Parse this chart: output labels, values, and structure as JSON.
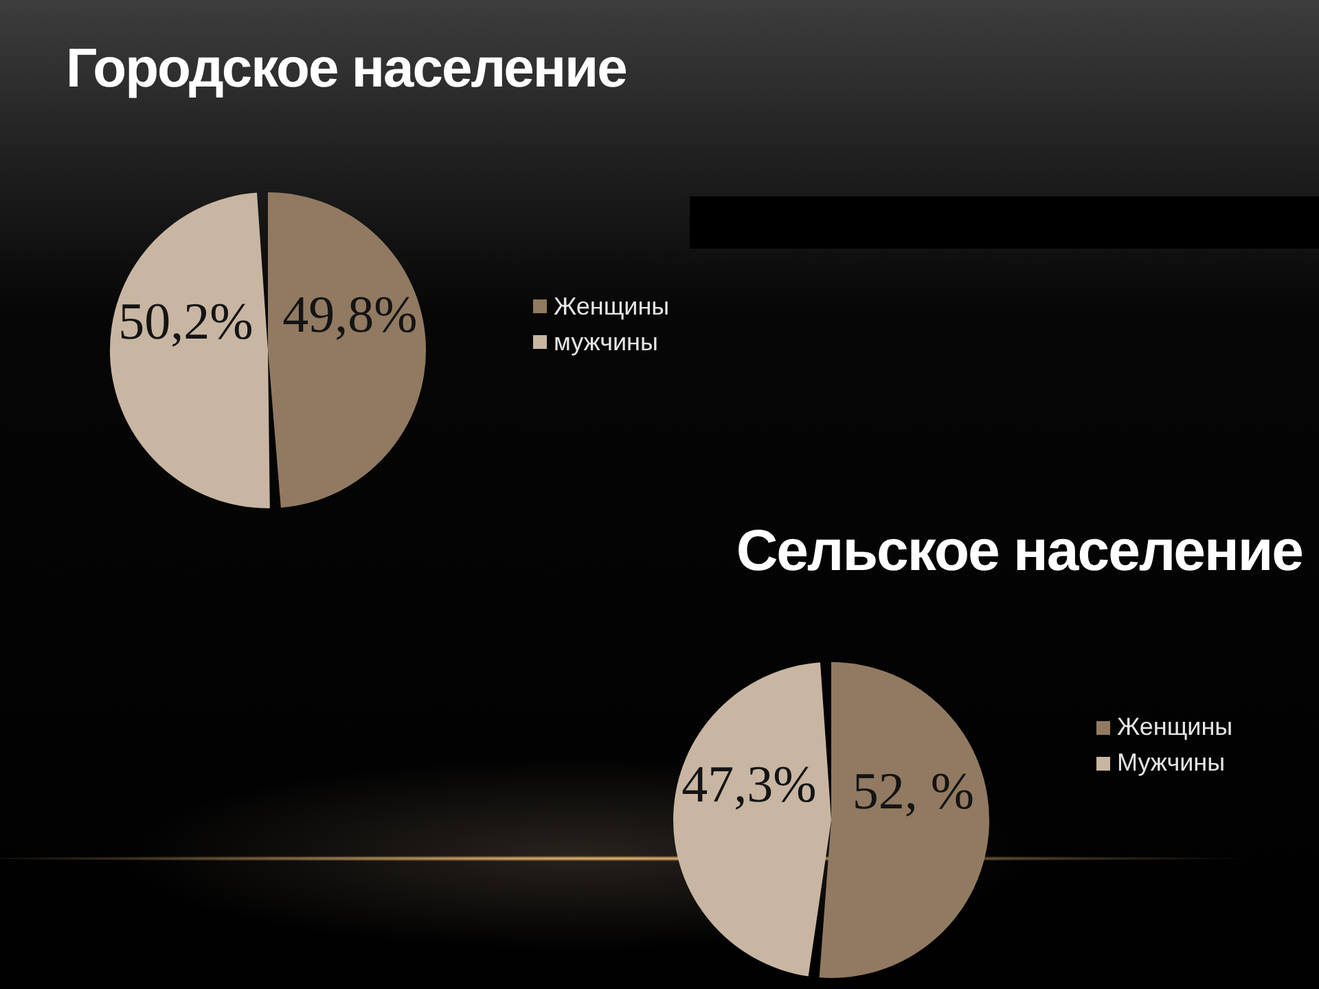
{
  "chart_data": [
    {
      "type": "pie",
      "title": "Городское население",
      "categories": [
        "Женщины",
        "мужчины"
      ],
      "values": [
        49.8,
        50.2
      ],
      "colors": [
        "#917a61",
        "#c8b6a2"
      ],
      "value_labels": [
        "49,8%",
        "50,2%"
      ],
      "legend": "right"
    },
    {
      "type": "pie",
      "title": "Сельское население",
      "categories": [
        "Женщины",
        "Мужчины"
      ],
      "values": [
        52,
        47.3
      ],
      "colors": [
        "#917a61",
        "#c8b6a2"
      ],
      "value_labels": [
        "52, %",
        "47,3%"
      ],
      "legend": "top right"
    }
  ]
}
